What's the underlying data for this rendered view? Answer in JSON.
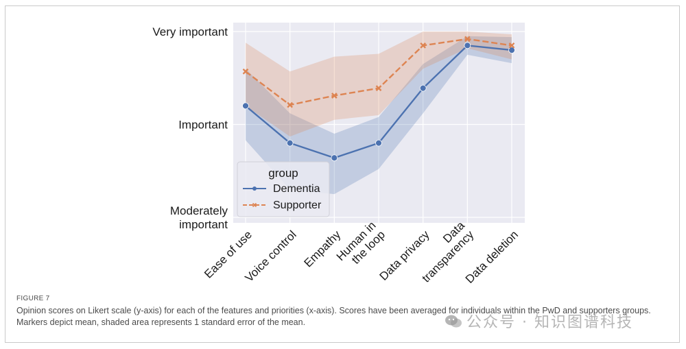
{
  "chart_data": {
    "type": "line",
    "categories": [
      "Ease of use",
      "Voice control",
      "Empathy",
      "Human in the loop",
      "Data privacy",
      "Data transparency",
      "Data deletion"
    ],
    "category_lines": [
      [
        "Ease of use"
      ],
      [
        "Voice control"
      ],
      [
        "Empathy"
      ],
      [
        "Human in",
        "the loop"
      ],
      [
        "Data privacy"
      ],
      [
        "Data",
        "transparency"
      ],
      [
        "Data deletion"
      ]
    ],
    "y_ticks": [
      {
        "value": 1,
        "lines": [
          "Moderately",
          "important"
        ]
      },
      {
        "value": 2,
        "lines": [
          "Important"
        ]
      },
      {
        "value": 3,
        "lines": [
          "Very important"
        ]
      }
    ],
    "ylim": [
      1,
      3
    ],
    "grid": true,
    "legend": {
      "title": "group",
      "placement": "lower-left"
    },
    "series": [
      {
        "name": "Dementia",
        "color": "#4c72b0",
        "marker": "circle",
        "line_style": "solid",
        "values": [
          2.2,
          1.8,
          1.64,
          1.8,
          2.39,
          2.85,
          2.8
        ],
        "lower": [
          1.83,
          1.3,
          1.25,
          1.52,
          2.12,
          2.75,
          2.66
        ],
        "upper": [
          2.6,
          2.12,
          1.9,
          2.08,
          2.65,
          2.95,
          2.94
        ]
      },
      {
        "name": "Supporter",
        "color": "#dd8452",
        "marker": "x",
        "line_style": "dashed",
        "values": [
          2.57,
          2.21,
          2.31,
          2.39,
          2.85,
          2.92,
          2.85
        ],
        "lower": [
          2.2,
          1.87,
          2.05,
          2.1,
          2.6,
          2.82,
          2.7
        ],
        "upper": [
          2.88,
          2.57,
          2.73,
          2.76,
          3.0,
          3.0,
          2.97
        ]
      }
    ]
  },
  "caption": {
    "figure_label": "FIGURE 7",
    "text": "Opinion scores on Likert scale (y-axis) for each of the features and priorities (x-axis). Scores have been averaged for individuals within the PwD and supporters groups. Markers depict mean, shaded area represents 1 standard error of the mean."
  },
  "watermark": {
    "text": "公众号 · 知识图谱科技",
    "icon": "wechat-icon"
  }
}
